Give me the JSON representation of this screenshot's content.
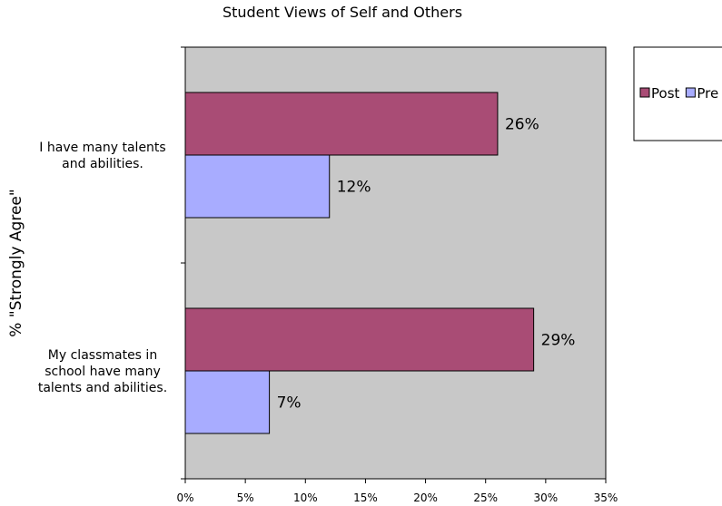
{
  "chart_data": {
    "type": "bar",
    "orientation": "horizontal",
    "title": "Student Views of Self and Others",
    "xlabel": "",
    "ylabel": "% \"Strongly Agree\"",
    "xlim": [
      0,
      35
    ],
    "x_ticks": [
      "0%",
      "5%",
      "10%",
      "15%",
      "20%",
      "25%",
      "30%",
      "35%"
    ],
    "categories": [
      "I have many talents and abilities.",
      "My classmates in school have many talents and abilities."
    ],
    "category_lines": [
      [
        "I have many talents",
        "and abilities."
      ],
      [
        "My classmates in",
        "school have many",
        "talents and abilities."
      ]
    ],
    "series": [
      {
        "name": "Post",
        "color": "#a94c75",
        "values": [
          26,
          29
        ],
        "labels": [
          "26%",
          "29%"
        ]
      },
      {
        "name": "Pre",
        "color": "#a8acff",
        "values": [
          12,
          7
        ],
        "labels": [
          "12%",
          "7%"
        ]
      }
    ],
    "plot_background": "#c8c8c8",
    "grid": false,
    "legend_position": "right"
  }
}
